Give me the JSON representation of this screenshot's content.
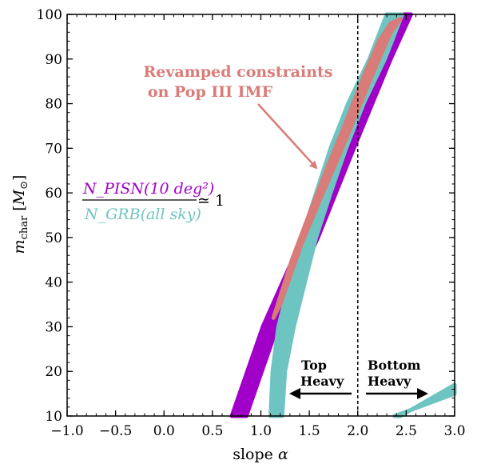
{
  "chart_data": {
    "type": "area",
    "xlabel": "slope α",
    "ylabel": "m_char [M_⊙]",
    "xlim": [
      -1.0,
      3.0
    ],
    "ylim": [
      10,
      100
    ],
    "xticks": [
      "−1.0",
      "−0.5",
      "0.0",
      "0.5",
      "1.0",
      "1.5",
      "2.0",
      "2.5",
      "3.0"
    ],
    "xtick_values": [
      -1.0,
      -0.5,
      0.0,
      0.5,
      1.0,
      1.5,
      2.0,
      2.5,
      3.0
    ],
    "yticks": [
      "10",
      "20",
      "30",
      "40",
      "50",
      "60",
      "70",
      "80",
      "90",
      "100"
    ],
    "ytick_values": [
      10,
      20,
      30,
      40,
      50,
      60,
      70,
      80,
      90,
      100
    ],
    "grid": false,
    "vline_x": 2.0,
    "colors": {
      "pisn": "#a000c8",
      "grb": "#6ec4c0",
      "constraint": "#d97b78"
    },
    "bands": [
      {
        "key": "pisn",
        "lower": [
          [
            0.7,
            10
          ],
          [
            1.02,
            30
          ],
          [
            1.43,
            50
          ],
          [
            1.81,
            70
          ],
          [
            2.18,
            90
          ],
          [
            2.38,
            100
          ]
        ],
        "upper": [
          [
            0.85,
            10
          ],
          [
            1.17,
            30
          ],
          [
            1.59,
            50
          ],
          [
            1.96,
            70
          ],
          [
            2.34,
            90
          ],
          [
            2.55,
            100
          ]
        ]
      },
      {
        "key": "grb",
        "lower": [
          [
            1.1,
            10
          ],
          [
            1.12,
            20
          ],
          [
            1.18,
            30
          ],
          [
            1.42,
            50
          ],
          [
            1.57,
            60
          ],
          [
            1.72,
            70
          ],
          [
            1.9,
            80
          ],
          [
            2.12,
            90
          ],
          [
            2.3,
            100
          ]
        ],
        "upper": [
          [
            1.22,
            10
          ],
          [
            1.25,
            20
          ],
          [
            1.34,
            30
          ],
          [
            1.57,
            50
          ],
          [
            1.72,
            60
          ],
          [
            1.88,
            70
          ],
          [
            2.06,
            80
          ],
          [
            2.28,
            90
          ],
          [
            2.46,
            100
          ]
        ]
      },
      {
        "key": "grb",
        "lower": [
          [
            2.38,
            10
          ],
          [
            3.0,
            15
          ]
        ],
        "upper": [
          [
            2.44,
            10
          ],
          [
            3.0,
            17
          ]
        ]
      },
      {
        "key": "constraint",
        "lower": [
          [
            1.13,
            32
          ],
          [
            1.32,
            45
          ],
          [
            1.53,
            57
          ],
          [
            1.71,
            67
          ],
          [
            1.88,
            76
          ],
          [
            2.06,
            86
          ],
          [
            2.22,
            94
          ],
          [
            2.34,
            98
          ]
        ],
        "upper": [
          [
            1.2,
            35
          ],
          [
            1.41,
            48
          ],
          [
            1.62,
            59
          ],
          [
            1.82,
            69
          ],
          [
            1.99,
            78
          ],
          [
            2.16,
            87
          ],
          [
            2.34,
            96
          ],
          [
            2.44,
            99
          ]
        ]
      }
    ],
    "annotations": {
      "constraint_line1": "Revamped constraints",
      "constraint_line2": "on Pop III IMF",
      "ratio_numerator": "N_PISN(10 deg²)",
      "ratio_denominator": "N_GRB(all sky)",
      "ratio_value": "≃ 1",
      "top_heavy_line1": "Top",
      "top_heavy_line2": "Heavy",
      "bottom_heavy_line1": "Bottom",
      "bottom_heavy_line2": "Heavy"
    }
  }
}
